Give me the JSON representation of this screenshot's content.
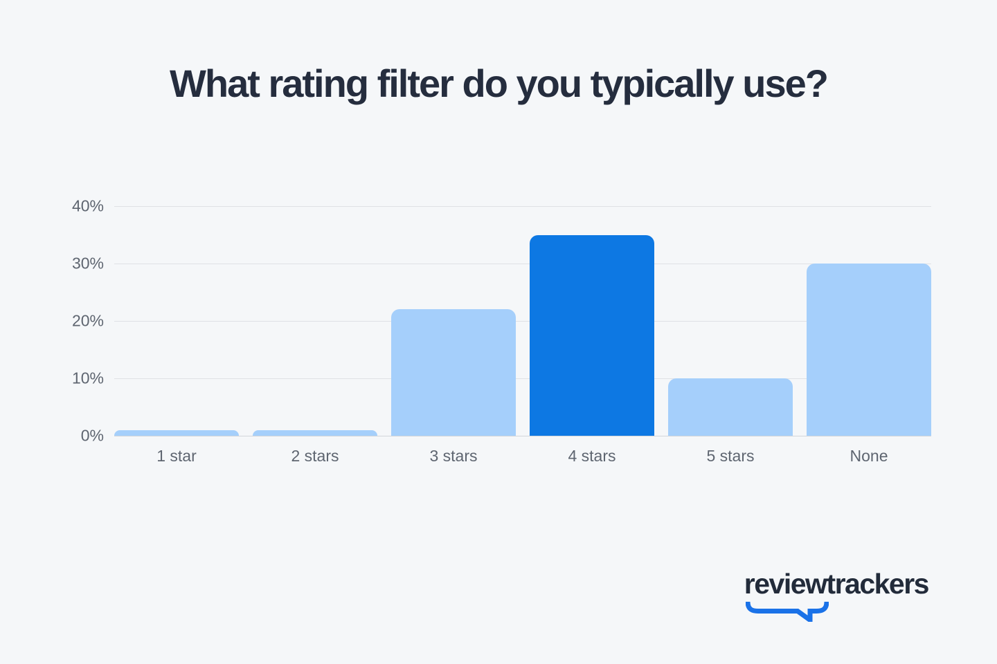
{
  "title": "What rating filter do you typically use?",
  "logo": {
    "text": "reviewtrackers"
  },
  "chart_data": {
    "type": "bar",
    "title": "What rating filter do you typically use?",
    "categories": [
      "1 star",
      "2 stars",
      "3 stars",
      "4 stars",
      "5 stars",
      "None"
    ],
    "values": [
      1,
      1,
      22,
      35,
      10,
      30
    ],
    "highlight_index": 3,
    "highlight_category": "4 stars",
    "xlabel": "",
    "ylabel": "",
    "ylim": [
      0,
      40
    ],
    "yticks": [
      0,
      10,
      20,
      30,
      40
    ],
    "ytick_labels": [
      "0%",
      "10%",
      "20%",
      "30%",
      "40%"
    ],
    "grid": true,
    "legend": false,
    "colors": {
      "bar_default": "#a5cffb",
      "bar_highlight": "#0d78e3",
      "background": "#f5f7f9",
      "gridline": "#dfe1e5",
      "baseline": "#d2d5d9",
      "title_text": "#252d3e",
      "axis_text": "#5e6570",
      "logo_text": "#222b3a",
      "logo_accent": "#1a72e8"
    }
  }
}
